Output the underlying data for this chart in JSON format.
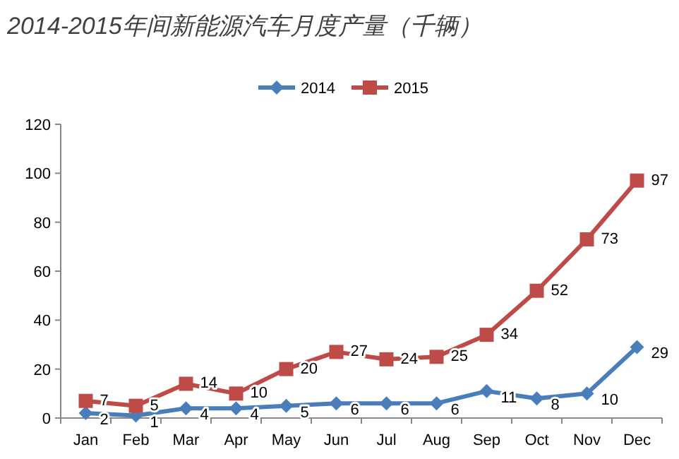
{
  "chart_data": {
    "type": "line",
    "title": "2014-2015年间新能源汽车月度产量（千辆）",
    "categories": [
      "Jan",
      "Feb",
      "Mar",
      "Apr",
      "May",
      "Jun",
      "Jul",
      "Aug",
      "Sep",
      "Oct",
      "Nov",
      "Dec"
    ],
    "series": [
      {
        "name": "2014",
        "color": "#4a7ebb",
        "marker": "diamond",
        "values": [
          2,
          1,
          4,
          4,
          5,
          6,
          6,
          6,
          11,
          8,
          10,
          29
        ]
      },
      {
        "name": "2015",
        "color": "#be4b48",
        "marker": "square",
        "values": [
          7,
          5,
          14,
          10,
          20,
          27,
          24,
          25,
          34,
          52,
          73,
          97
        ]
      }
    ],
    "ylim": [
      0,
      120
    ],
    "yticks": [
      0,
      20,
      40,
      60,
      80,
      100,
      120
    ],
    "data_labels": true,
    "legend": "top",
    "grid": false
  }
}
